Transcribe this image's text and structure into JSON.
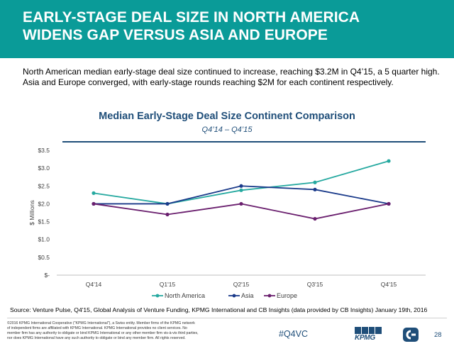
{
  "header": {
    "title": "EARLY-STAGE DEAL SIZE IN NORTH AMERICA WIDENS GAP VERSUS ASIA AND EUROPE",
    "background_color": "#0a9b98"
  },
  "intro_text": "North American median early-stage deal size continued to increase, reaching $3.2M in Q4’15, a 5 quarter high. Asia and Europe converged, with early-stage rounds reaching $2M for each continent respectively.",
  "chart_data": {
    "type": "line",
    "title": "Median Early-Stage Deal Size Continent Comparison",
    "subtitle": "Q4’14 – Q4’15",
    "xlabel": "",
    "ylabel": "$ Millions",
    "categories": [
      "Q4'14",
      "Q1'15",
      "Q2'15",
      "Q3'15",
      "Q4'15"
    ],
    "ylim": [
      0,
      3.5
    ],
    "y_ticks": [
      {
        "value": 0,
        "label": "$-"
      },
      {
        "value": 0.5,
        "label": "$0.5"
      },
      {
        "value": 1.0,
        "label": "$1.0"
      },
      {
        "value": 1.5,
        "label": "$1.5"
      },
      {
        "value": 2.0,
        "label": "$2.0"
      },
      {
        "value": 2.5,
        "label": "$2.5"
      },
      {
        "value": 3.0,
        "label": "$3.0"
      },
      {
        "value": 3.5,
        "label": "$3.5"
      }
    ],
    "grid": false,
    "legend_position": "bottom",
    "series": [
      {
        "name": "North America",
        "color": "#26a9a0",
        "values": [
          2.3,
          2.0,
          2.38,
          2.6,
          3.2
        ]
      },
      {
        "name": "Asia",
        "color": "#1a3a8a",
        "values": [
          2.0,
          2.0,
          2.5,
          2.4,
          2.0
        ]
      },
      {
        "name": "Europe",
        "color": "#6a1f6e",
        "values": [
          2.0,
          1.7,
          2.0,
          1.58,
          2.0
        ]
      }
    ]
  },
  "source": "Source: Venture Pulse, Q4'15, Global Analysis of Venture Funding, KPMG International and CB Insights (data provided by CB Insights) January 19th, 2016",
  "footer": {
    "fine_print": "©2016 KPMG International Cooperative (\"KPMG International\"), a Swiss entity. Member firms of the KPMG network of independent firms are affiliated with KPMG International. KPMG International provides no client services. No member firm has any authority to obligate or bind KPMG International or any other member firm vis-à-vis third parties, nor does KPMG International have any such authority to obligate or bind any member firm. All rights reserved.",
    "hashtag": "#Q4VC",
    "kpmg_logo_text": "KPMG",
    "page_number": "28",
    "brand_color": "#1f4e79"
  }
}
